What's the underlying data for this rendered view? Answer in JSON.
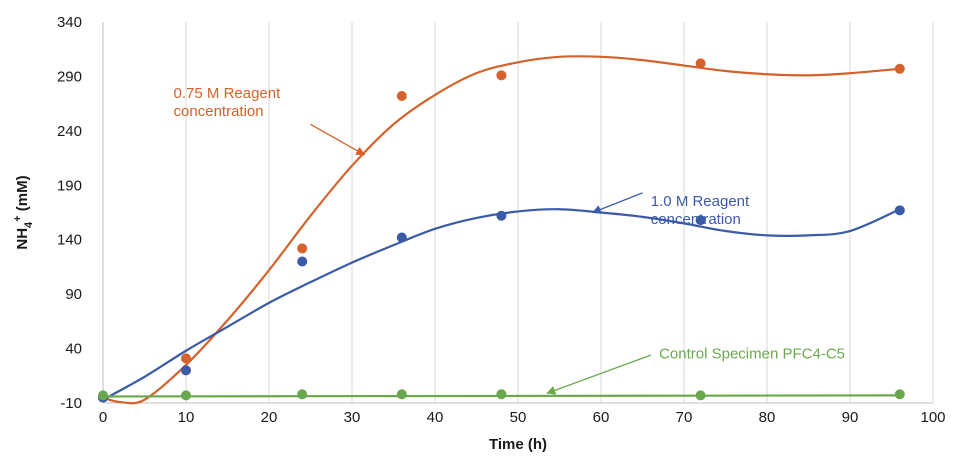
{
  "chart_data": {
    "type": "scatter",
    "title": "",
    "xlabel": "Time (h)",
    "ylabel": {
      "base": "NH",
      "sub": "4",
      "sup": "+",
      "rest": " (mM)"
    },
    "xlim": [
      0,
      100
    ],
    "ylim": [
      -10,
      340
    ],
    "xticks": [
      0,
      10,
      20,
      30,
      40,
      50,
      60,
      70,
      80,
      90,
      100
    ],
    "yticks": [
      -10,
      40,
      90,
      140,
      190,
      240,
      290,
      340
    ],
    "grid": "vertical",
    "legend": "none",
    "series": [
      {
        "key": "s075",
        "color": "#d4622a",
        "points": {
          "x": [
            0,
            10,
            24,
            36,
            48,
            72,
            96
          ],
          "y": [
            -5,
            31,
            132,
            272,
            291,
            302,
            297
          ]
        },
        "curve": {
          "x": [
            0,
            2,
            5,
            10,
            15,
            20,
            25,
            30,
            35,
            40,
            45,
            50,
            55,
            60,
            65,
            70,
            75,
            80,
            85,
            90,
            96
          ],
          "y": [
            -5,
            -9,
            -7,
            25,
            66,
            112,
            162,
            208,
            246,
            273,
            293,
            303,
            308,
            308,
            305,
            300,
            295,
            292,
            291,
            293,
            297
          ]
        }
      },
      {
        "key": "s10",
        "color": "#3a5ba8",
        "points": {
          "x": [
            0,
            10,
            24,
            36,
            48,
            72,
            96
          ],
          "y": [
            -5,
            20,
            120,
            142,
            162,
            158,
            167
          ]
        },
        "curve": {
          "x": [
            0,
            5,
            10,
            15,
            20,
            25,
            30,
            35,
            40,
            45,
            50,
            55,
            60,
            65,
            70,
            75,
            80,
            85,
            90,
            96
          ],
          "y": [
            -7,
            14,
            38,
            60,
            82,
            101,
            119,
            135,
            150,
            160,
            166,
            168,
            165,
            161,
            155,
            148,
            144,
            144,
            148,
            168
          ]
        }
      },
      {
        "key": "sctrl",
        "color": "#6aa84f",
        "points": {
          "x": [
            0,
            10,
            24,
            36,
            48,
            72,
            96
          ],
          "y": [
            -3,
            -3,
            -2,
            -2,
            -2,
            -3,
            -2
          ]
        },
        "curve": {
          "x": [
            0,
            96
          ],
          "y": [
            -4,
            -3
          ]
        }
      }
    ],
    "annotations": [
      {
        "key": "a075",
        "lines": [
          "0.75 M Reagent",
          "concentration"
        ],
        "color": "#d4622a",
        "text_at": [
          8.5,
          270
        ],
        "arrow_from": [
          25,
          246
        ],
        "arrow_to": [
          31.5,
          218
        ]
      },
      {
        "key": "a10",
        "lines": [
          "1.0 M Reagent",
          "concentration"
        ],
        "color": "#3a5ba8",
        "text_at": [
          66,
          171
        ],
        "arrow_from": [
          65,
          183
        ],
        "arrow_to": [
          59,
          165
        ]
      },
      {
        "key": "actrl",
        "lines": [
          "Control Specimen PFC4-C5"
        ],
        "color": "#6aa84f",
        "text_at": [
          67,
          31
        ],
        "arrow_from": [
          66,
          34
        ],
        "arrow_to": [
          53.5,
          -1
        ]
      }
    ]
  }
}
